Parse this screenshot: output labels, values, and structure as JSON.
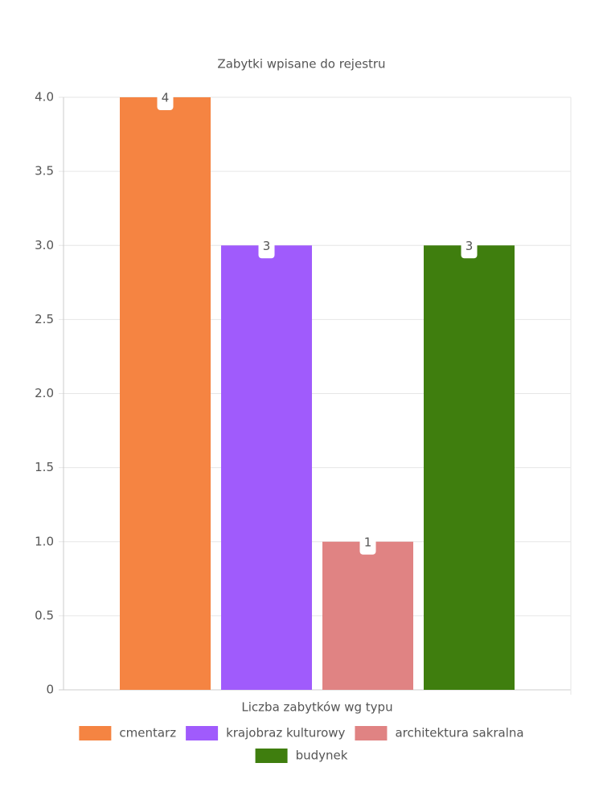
{
  "chart_data": {
    "type": "bar",
    "title": "Zabytki wpisane do rejestru",
    "categories": [
      "Liczba zabytków wg typu"
    ],
    "series": [
      {
        "name": "cmentarz",
        "color": "#f58442",
        "values": [
          4
        ]
      },
      {
        "name": "krajobraz kulturowy",
        "color": "#a05bfc",
        "values": [
          3
        ]
      },
      {
        "name": "architektura sakralna",
        "color": "#e08383",
        "values": [
          1
        ]
      },
      {
        "name": "budynek",
        "color": "#3f7e0e",
        "values": [
          3
        ]
      }
    ],
    "ylim": [
      0,
      4
    ],
    "yticks": [
      0,
      0.5,
      {
        "value": 1,
        "label": "1.0"
      },
      1.5,
      {
        "value": 2,
        "label": "2.0"
      },
      2.5,
      {
        "value": 3,
        "label": "3.0"
      },
      3.5,
      {
        "value": 4,
        "label": "4.0"
      }
    ],
    "grid": true,
    "legend": "bottom"
  }
}
